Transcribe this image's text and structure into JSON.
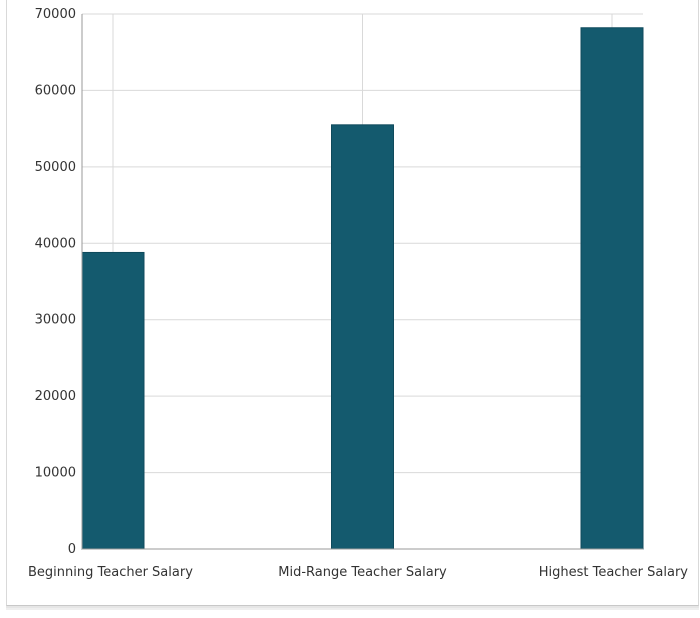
{
  "chart_data": {
    "type": "bar",
    "title": "",
    "xlabel": "",
    "ylabel": "",
    "categories": [
      "Beginning Teacher Salary",
      "Mid-Range Teacher Salary",
      "Highest Teacher Salary"
    ],
    "values": [
      38800,
      55500,
      68200
    ],
    "ylim": [
      0,
      70000
    ],
    "yticks": [
      0,
      10000,
      20000,
      30000,
      40000,
      50000,
      60000,
      70000
    ],
    "grid": true,
    "legend": "none",
    "bar_color": "#145a6e",
    "grid_color": "#d9d9d9"
  }
}
